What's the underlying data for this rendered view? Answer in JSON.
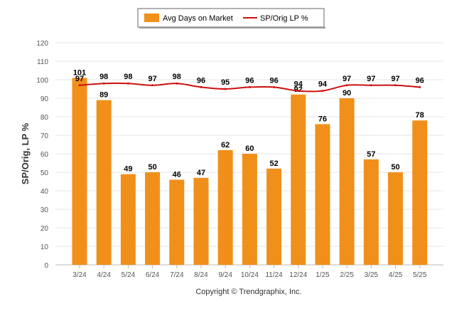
{
  "chart_data": {
    "type": "bar",
    "categories": [
      "3/24",
      "4/24",
      "5/24",
      "6/24",
      "7/24",
      "8/24",
      "9/24",
      "10/24",
      "11/24",
      "12/24",
      "1/25",
      "2/25",
      "3/25",
      "4/25",
      "5/25"
    ],
    "series": [
      {
        "name": "Avg Days on Market",
        "type": "bar",
        "color": "#f0901a",
        "values": [
          101,
          89,
          49,
          50,
          46,
          47,
          62,
          60,
          52,
          92,
          76,
          90,
          57,
          50,
          78
        ]
      },
      {
        "name": "SP/Orig LP %",
        "type": "line",
        "color": "#cc1111",
        "values": [
          97,
          98,
          98,
          97,
          98,
          96,
          95,
          96,
          96,
          94,
          94,
          97,
          97,
          97,
          96
        ]
      }
    ],
    "ylabel": "SP/Orig, LP %",
    "xlabel": "",
    "ylim": [
      0,
      120
    ],
    "yticks": [
      0,
      10,
      20,
      30,
      40,
      50,
      60,
      70,
      80,
      90,
      100,
      110,
      120
    ],
    "grid": true,
    "legend_position": "top-center"
  },
  "footer": "Copyright © Trendgraphix, Inc."
}
